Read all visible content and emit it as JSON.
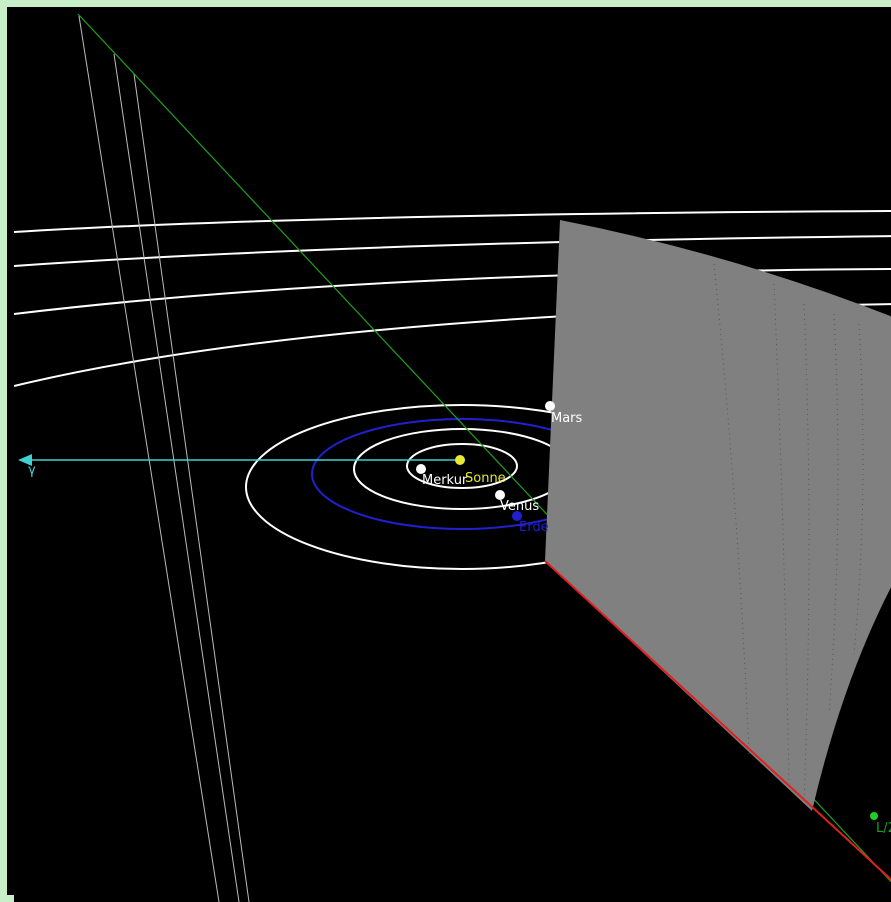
{
  "colors": {
    "frame": "#c8f0c8",
    "space": "#000000",
    "orbit": "#ffffff",
    "earth_orbit": "#2020d0",
    "sun": "#e8e830",
    "vernal_axis": "#40d0d0",
    "ecliptic_line": "#20a020",
    "plane": "#808080",
    "plane_edge": "#e02020"
  },
  "labels": {
    "sonne": "Sonne",
    "merkur": "Merkur",
    "venus": "Venus",
    "erde": "Erde",
    "mars": "Mars",
    "gamma": "γ",
    "lower_right": "L/2"
  }
}
